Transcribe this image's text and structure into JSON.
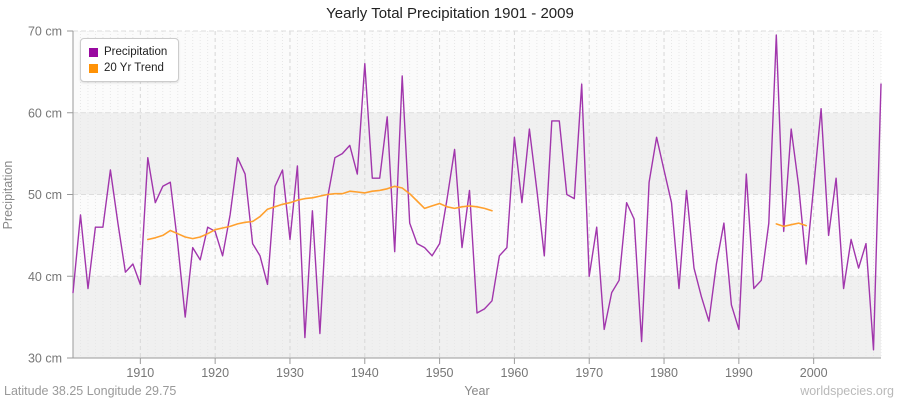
{
  "title": "Yearly Total Precipitation 1901 - 2009",
  "x_axis_label": "Year",
  "y_axis_label": "Precipitation",
  "footer": {
    "left": "Latitude 38.25 Longitude 29.75",
    "right": "worldspecies.org"
  },
  "chart_data": {
    "type": "line",
    "title": "Yearly Total Precipitation 1901 - 2009",
    "xlabel": "Year",
    "ylabel": "Precipitation",
    "xlim": [
      1901,
      2009
    ],
    "ylim": [
      30,
      70
    ],
    "y_unit": "cm",
    "y_ticks": [
      {
        "value": 70,
        "label": "70 cm"
      },
      {
        "value": 60,
        "label": "60 cm"
      },
      {
        "value": 50,
        "label": "50 cm"
      },
      {
        "value": 40,
        "label": "40 cm"
      },
      {
        "value": 30,
        "label": "30 cm"
      }
    ],
    "x_ticks": [
      1910,
      1920,
      1930,
      1940,
      1950,
      1960,
      1970,
      1980,
      1990,
      2000
    ],
    "grid": {
      "horizontal_dashed_at": [
        70,
        60,
        50,
        40
      ],
      "vertical_minor_every_years": 1,
      "vertical_major_every_years": 10,
      "alternating_bands": true
    },
    "legend_position": "top-left",
    "series": [
      {
        "name": "Precipitation",
        "color": "#A136AC",
        "legend_color": "#9909A0",
        "x_start": 1901,
        "values": [
          38,
          47.5,
          38.5,
          46,
          46,
          53,
          46.5,
          40.5,
          41.5,
          39,
          54.5,
          49,
          51,
          51.5,
          44,
          35,
          43.5,
          42,
          46,
          45.5,
          42.5,
          47.5,
          54.5,
          52.5,
          44,
          42.5,
          39,
          51,
          53,
          44.5,
          53.5,
          32.5,
          48,
          33,
          49.5,
          54.5,
          55,
          56,
          52.5,
          66,
          52,
          52,
          59.5,
          43,
          64.5,
          46.5,
          44,
          43.5,
          42.5,
          44,
          49.5,
          55.5,
          43.5,
          50.5,
          35.5,
          36,
          37,
          42.5,
          43.5,
          57,
          49,
          58,
          50.5,
          42.5,
          59,
          59,
          50,
          49.5,
          63.5,
          40,
          46,
          33.5,
          38,
          39.5,
          49,
          47,
          32,
          51.5,
          57,
          53,
          49,
          38.5,
          50.5,
          41,
          37.5,
          34.5,
          41.5,
          46.5,
          36.5,
          33.5,
          52.5,
          38.5,
          39.5,
          46.5,
          69.5,
          45.5,
          58,
          51,
          41.5,
          51,
          60.5,
          45,
          52,
          38.5,
          44.5,
          41,
          44,
          31,
          63.5
        ]
      },
      {
        "name": "20 Yr Trend",
        "color": "#FFA02E",
        "legend_color": "#FF9206",
        "segments": [
          {
            "x_start": 1911,
            "values": [
              44.5,
              44.7,
              45.0,
              45.6,
              45.2,
              44.8,
              44.6,
              44.8,
              45.2,
              45.7,
              45.9,
              46.1,
              46.4,
              46.6,
              46.7,
              47.3,
              48.2,
              48.5,
              48.8,
              49.0,
              49.3,
              49.5,
              49.6,
              49.8,
              50.0,
              50.1,
              50.1,
              50.4,
              50.3,
              50.2,
              50.4,
              50.5,
              50.7,
              51.0,
              50.8,
              50.1,
              49.2,
              48.3,
              48.6,
              48.9,
              48.5,
              48.3,
              48.5,
              48.6,
              48.5,
              48.3,
              48.0
            ]
          },
          {
            "x_start": 1995,
            "values": [
              46.4,
              46.1,
              46.3,
              46.5,
              46.2
            ]
          }
        ]
      }
    ]
  }
}
